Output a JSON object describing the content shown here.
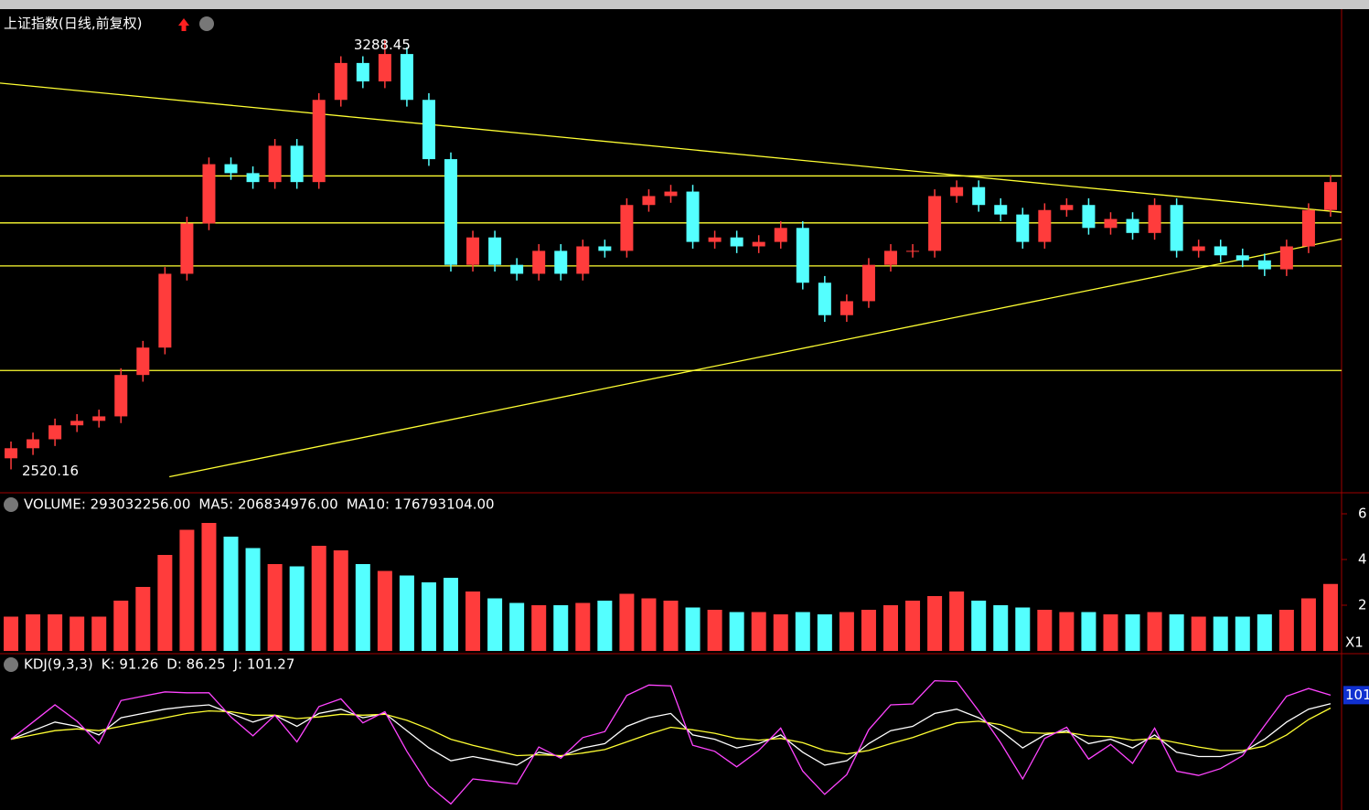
{
  "chart_data": [
    {
      "type": "candlestick",
      "title": "上证指数(日线,前复权)",
      "xlim": [
        -0.5,
        60.5
      ],
      "ylim": [
        2480,
        3340
      ],
      "up_color": "#ff3c3c",
      "down_color": "#54ffff",
      "open": [
        2540,
        2558,
        2574,
        2599,
        2607,
        2615,
        2689,
        2738,
        2870,
        2960,
        3066,
        3050,
        3034,
        3099,
        3034,
        3181,
        3247,
        3214,
        3263,
        3181,
        3075,
        2886,
        2935,
        2886,
        2870,
        2911,
        2870,
        2919,
        2911,
        2993,
        3009,
        3017,
        2927,
        2935,
        2919,
        2927,
        2952,
        2854,
        2796,
        2821,
        2886,
        2911,
        2911,
        3009,
        3025,
        2993,
        2976,
        2927,
        2984,
        2993,
        2952,
        2968,
        2943,
        2993,
        2911,
        2919,
        2903,
        2894,
        2878,
        2919,
        2984
      ],
      "high": [
        2570,
        2586,
        2611,
        2619,
        2627,
        2701,
        2750,
        2882,
        2972,
        3078,
        3078,
        3062,
        3111,
        3111,
        3193,
        3259,
        3259,
        3288.45,
        3275,
        3193,
        3087,
        2947,
        2947,
        2898,
        2923,
        2923,
        2931,
        2931,
        3005,
        3021,
        3029,
        3029,
        2947,
        2947,
        2939,
        2964,
        2964,
        2866,
        2833,
        2898,
        2923,
        2923,
        3021,
        3037,
        3037,
        3005,
        2988,
        2996,
        3005,
        3005,
        2980,
        2980,
        3005,
        3005,
        2931,
        2931,
        2915,
        2906,
        2931,
        2996,
        3046
      ],
      "low": [
        2520.16,
        2546,
        2562,
        2587,
        2595,
        2603,
        2677,
        2726,
        2858,
        2948,
        3038,
        3022,
        3022,
        3022,
        3022,
        3169,
        3202,
        3202,
        3169,
        3063,
        2874,
        2874,
        2874,
        2858,
        2858,
        2858,
        2858,
        2899,
        2899,
        2981,
        2997,
        2915,
        2915,
        2907,
        2907,
        2915,
        2842,
        2784,
        2784,
        2809,
        2874,
        2899,
        2899,
        2997,
        2981,
        2964,
        2915,
        2915,
        2972,
        2940,
        2940,
        2931,
        2931,
        2899,
        2899,
        2891,
        2882,
        2866,
        2866,
        2907,
        2972
      ],
      "close": [
        2558,
        2574,
        2599,
        2607,
        2615,
        2689,
        2738,
        2870,
        2960,
        3066,
        3050,
        3034,
        3099,
        3034,
        3181,
        3247,
        3214,
        3263,
        3181,
        3075,
        2886,
        2935,
        2886,
        2870,
        2911,
        2870,
        2919,
        2911,
        2993,
        3009,
        3017,
        2927,
        2935,
        2919,
        2927,
        2952,
        2854,
        2796,
        2821,
        2886,
        2911,
        2911,
        3009,
        3025,
        2993,
        2976,
        2927,
        2984,
        2993,
        2952,
        2968,
        2943,
        2993,
        2911,
        2919,
        2903,
        2894,
        2878,
        2919,
        2984,
        3034
      ],
      "levels": [
        3045,
        2961,
        2884,
        2697
      ],
      "level_color": "#ffff33",
      "trendlines": [
        {
          "x": [
            -0.5,
            60.5
          ],
          "y": [
            3211,
            2980
          ]
        },
        {
          "x": [
            7.2,
            60.5
          ],
          "y": [
            2507,
            2932
          ]
        }
      ]
    },
    {
      "type": "volume",
      "headers": [
        {
          "text": "VOLUME: 293032256.00",
          "color": "#ffffff"
        },
        {
          "text": "MA5: 206834976.00",
          "color": "#ffffff"
        },
        {
          "text": "MA10: 176793104.00",
          "color": "#ffff33"
        }
      ],
      "xlim": [
        -0.5,
        60.5
      ],
      "ylim": [
        0,
        7
      ],
      "yticks": [
        2,
        4,
        6
      ],
      "multiplier_label": "X1",
      "values": [
        1.5,
        1.6,
        1.6,
        1.5,
        1.5,
        2.2,
        2.8,
        4.2,
        5.3,
        5.6,
        5.0,
        4.5,
        3.8,
        3.7,
        4.6,
        4.4,
        3.8,
        3.5,
        3.3,
        3.0,
        3.2,
        2.6,
        2.3,
        2.1,
        2.0,
        2.0,
        2.1,
        2.2,
        2.5,
        2.3,
        2.2,
        1.9,
        1.8,
        1.7,
        1.7,
        1.6,
        1.7,
        1.6,
        1.7,
        1.8,
        2.0,
        2.2,
        2.4,
        2.6,
        2.2,
        2.0,
        1.9,
        1.8,
        1.7,
        1.7,
        1.6,
        1.6,
        1.7,
        1.6,
        1.5,
        1.5,
        1.5,
        1.6,
        1.8,
        2.3,
        2.93
      ]
    },
    {
      "type": "line",
      "headers": [
        {
          "text": "KDJ(9,3,3)",
          "color": "#ffffff"
        },
        {
          "text": "K: 91.26",
          "color": "#ffffff"
        },
        {
          "text": "D: 86.25",
          "color": "#ffff33"
        },
        {
          "text": "J: 101.27",
          "color": "#ff44ff"
        }
      ],
      "current_label": "101",
      "xlim": [
        -0.5,
        60.5
      ],
      "ylim": [
        -30,
        125
      ],
      "series": [
        {
          "name": "K",
          "color": "#ffffff",
          "values": [
            50,
            60,
            70,
            65,
            55,
            75,
            80,
            85,
            88,
            90,
            80,
            70,
            78,
            65,
            80,
            85,
            75,
            80,
            60,
            40,
            25,
            30,
            25,
            20,
            35,
            30,
            40,
            45,
            65,
            75,
            80,
            55,
            50,
            40,
            45,
            55,
            35,
            20,
            25,
            45,
            60,
            65,
            80,
            85,
            75,
            60,
            40,
            55,
            60,
            45,
            50,
            40,
            55,
            35,
            30,
            30,
            35,
            50,
            70,
            85,
            91.26
          ]
        },
        {
          "name": "D",
          "color": "#ffff33",
          "values": [
            50,
            55,
            60,
            62,
            60,
            65,
            70,
            75,
            80,
            83,
            82,
            78,
            78,
            74,
            76,
            79,
            78,
            79,
            72,
            62,
            50,
            43,
            37,
            31,
            32,
            31,
            34,
            38,
            47,
            56,
            64,
            61,
            57,
            51,
            49,
            51,
            46,
            37,
            33,
            37,
            45,
            52,
            61,
            69,
            71,
            67,
            58,
            57,
            58,
            54,
            53,
            49,
            51,
            46,
            41,
            37,
            37,
            42,
            55,
            73,
            86.25
          ]
        },
        {
          "name": "J",
          "color": "#ff44ff",
          "values": [
            50,
            70,
            90,
            71,
            45,
            95,
            100,
            105,
            104,
            104,
            76,
            54,
            78,
            47,
            88,
            97,
            69,
            82,
            36,
            -4,
            -25,
            4,
            1,
            -2,
            41,
            28,
            52,
            59,
            101,
            113,
            112,
            43,
            36,
            18,
            37,
            63,
            13,
            -14,
            9,
            61,
            90,
            91,
            118,
            117,
            83,
            46,
            4,
            51,
            64,
            27,
            44,
            22,
            63,
            13,
            8,
            16,
            31,
            66,
            100,
            109,
            101.27
          ]
        }
      ]
    }
  ]
}
